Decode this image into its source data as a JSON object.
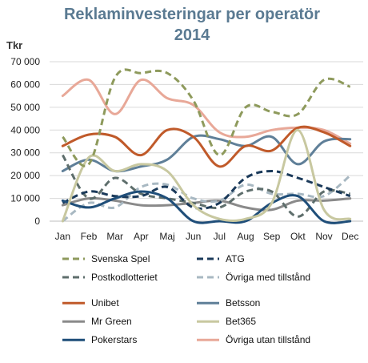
{
  "chart_data": {
    "type": "line",
    "title_line1": "Reklaminvesteringar per operatör",
    "title_line2": "2014",
    "ylabel": "Tkr",
    "ylim": [
      0,
      70000
    ],
    "y_ticks": [
      "0",
      "10 000",
      "20 000",
      "30 000",
      "40 000",
      "50 000",
      "60 000",
      "70 000"
    ],
    "categories": [
      "Jan",
      "Feb",
      "Mar",
      "Apr",
      "Maj",
      "Jun",
      "Jul",
      "Aug",
      "Sep",
      "Okt",
      "Nov",
      "Dec"
    ],
    "grid": true,
    "legend_position": "bottom",
    "series": [
      {
        "name": "Svenska Spel",
        "color": "#8e9a5c",
        "dash": true,
        "values": [
          37000,
          25000,
          63000,
          65000,
          65000,
          53000,
          29000,
          50000,
          48000,
          47000,
          62000,
          59000
        ]
      },
      {
        "name": "ATG",
        "color": "#1b3a5a",
        "dash": true,
        "values": [
          8000,
          13000,
          11000,
          11000,
          15000,
          6000,
          8000,
          19000,
          22000,
          19000,
          15000,
          11000
        ]
      },
      {
        "name": "Postkodlotteriet",
        "color": "#5e6e6c",
        "dash": true,
        "values": [
          29000,
          10000,
          19000,
          12000,
          10000,
          8000,
          6000,
          13000,
          13000,
          2000,
          13000,
          12000
        ]
      },
      {
        "name": "Övriga med tillstånd",
        "color": "#a8b8c2",
        "dash": true,
        "values": [
          0,
          8000,
          6000,
          15000,
          16000,
          10000,
          9000,
          16000,
          12000,
          12000,
          11000,
          20000
        ]
      },
      {
        "name": "Unibet",
        "color": "#c05a2a",
        "dash": false,
        "values": [
          33000,
          38000,
          37000,
          29000,
          40000,
          37000,
          24000,
          33000,
          31000,
          41000,
          39000,
          33000
        ]
      },
      {
        "name": "Betsson",
        "color": "#5f7f98",
        "dash": false,
        "values": [
          22000,
          27000,
          22000,
          24000,
          27000,
          37000,
          36000,
          33000,
          37000,
          25000,
          35000,
          36000
        ]
      },
      {
        "name": "Mr Green",
        "color": "#8a8a8a",
        "dash": false,
        "values": [
          7000,
          10000,
          9000,
          7000,
          7000,
          8000,
          9000,
          6000,
          5000,
          9000,
          9000,
          10000
        ]
      },
      {
        "name": "Bet365",
        "color": "#c8c8a0",
        "dash": false,
        "values": [
          0,
          28000,
          22000,
          25000,
          22000,
          7000,
          1000,
          1000,
          8000,
          40000,
          5000,
          1000
        ]
      },
      {
        "name": "Pokerstars",
        "color": "#1f4e79",
        "dash": false,
        "values": [
          9000,
          6000,
          10000,
          13000,
          10000,
          0,
          0,
          0,
          8000,
          11000,
          0,
          0
        ]
      },
      {
        "name": "Övriga utan tillstånd",
        "color": "#e8a898",
        "dash": false,
        "values": [
          55000,
          62000,
          47000,
          62000,
          54000,
          51000,
          39000,
          37000,
          40000,
          41000,
          40000,
          34000
        ]
      }
    ]
  }
}
